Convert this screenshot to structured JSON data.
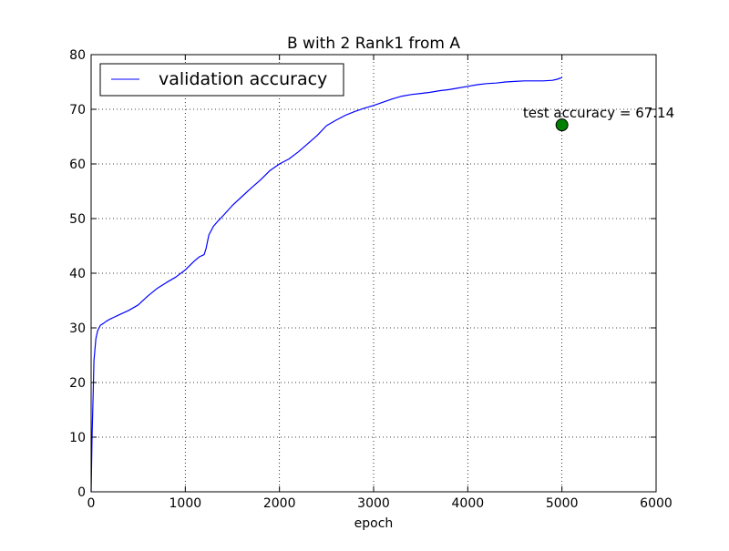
{
  "chart_data": {
    "type": "line",
    "title": "B with 2 Rank1 from A",
    "xlabel": "epoch",
    "ylabel": "",
    "xlim": [
      0,
      6000
    ],
    "ylim": [
      0,
      80
    ],
    "xticks": [
      "0",
      "1000",
      "2000",
      "3000",
      "4000",
      "5000",
      "6000"
    ],
    "yticks": [
      "0",
      "10",
      "20",
      "30",
      "40",
      "50",
      "60",
      "70",
      "80"
    ],
    "grid": true,
    "legend": {
      "placement": "top-left",
      "entries": [
        "validation accuracy"
      ]
    },
    "series": [
      {
        "name": "validation accuracy",
        "color": "#0000ff",
        "x": [
          0,
          10,
          20,
          30,
          50,
          70,
          100,
          130,
          160,
          200,
          250,
          300,
          400,
          500,
          600,
          700,
          800,
          900,
          1000,
          1100,
          1150,
          1200,
          1220,
          1250,
          1300,
          1350,
          1400,
          1500,
          1600,
          1700,
          1800,
          1900,
          2000,
          2100,
          2200,
          2300,
          2400,
          2500,
          2600,
          2700,
          2800,
          2900,
          3000,
          3100,
          3200,
          3300,
          3400,
          3500,
          3600,
          3700,
          3800,
          3900,
          4000,
          4100,
          4200,
          4300,
          4400,
          4500,
          4600,
          4700,
          4800,
          4900,
          4950,
          5000
        ],
        "y": [
          0,
          10,
          17,
          24,
          28,
          29.5,
          30.5,
          30.8,
          31.2,
          31.6,
          32,
          32.4,
          33.2,
          34.2,
          35.8,
          37.2,
          38.3,
          39.3,
          40.6,
          42.3,
          43,
          43.4,
          44.5,
          47,
          48.6,
          49.6,
          50.5,
          52.4,
          54,
          55.6,
          57.1,
          58.8,
          60,
          60.9,
          62.2,
          63.7,
          65.2,
          67,
          68,
          68.9,
          69.6,
          70.2,
          70.7,
          71.3,
          71.9,
          72.4,
          72.7,
          72.9,
          73.1,
          73.4,
          73.6,
          73.9,
          74.2,
          74.5,
          74.7,
          74.8,
          75,
          75.1,
          75.2,
          75.2,
          75.2,
          75.3,
          75.5,
          75.8
        ]
      }
    ],
    "points": [
      {
        "x": 5000,
        "y": 67.14,
        "color": "#008000"
      }
    ],
    "annotations": [
      {
        "text": "test accuracy = 67.14",
        "x": 5000,
        "y": 67.14
      }
    ]
  }
}
